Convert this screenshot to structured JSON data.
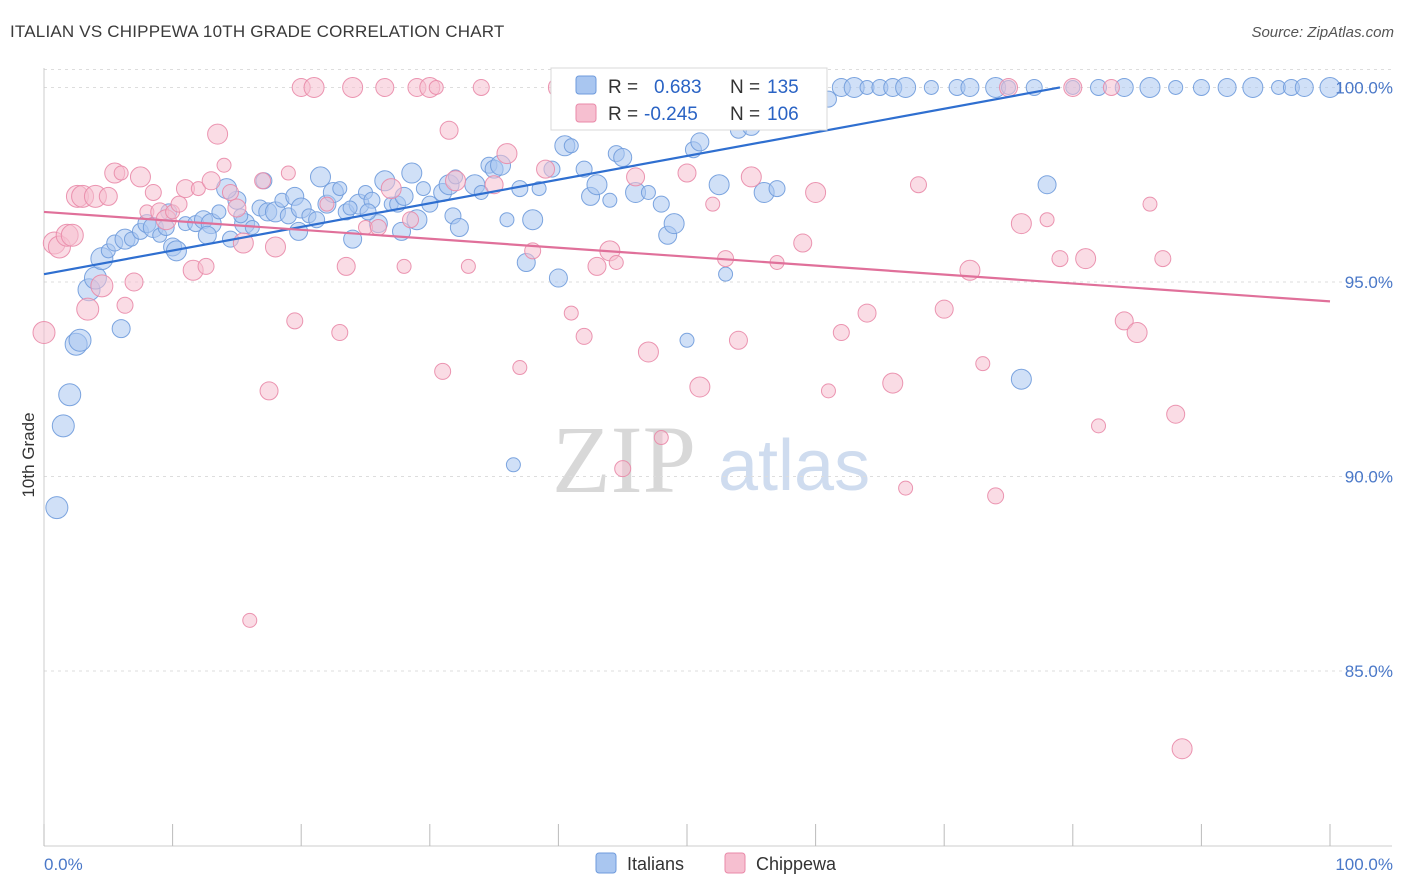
{
  "header": {
    "title": "ITALIAN VS CHIPPEWA 10TH GRADE CORRELATION CHART",
    "source": "Source: ZipAtlas.com"
  },
  "watermark": {
    "zip": "ZIP",
    "atlas": "atlas"
  },
  "colors": {
    "italians_fill": "#a9c6f0",
    "italians_stroke": "#6f9bdc",
    "italians_line": "#2f6fd0",
    "chippewa_fill": "#f6bfd0",
    "chippewa_stroke": "#e98aa9",
    "chippewa_line": "#e0709a",
    "grid": "#dddddd"
  },
  "legend": {
    "rows": [
      {
        "r_label": "R = ",
        "r_value": "0.683",
        "n_label": "N = ",
        "n_value": "135"
      },
      {
        "r_label": "R = ",
        "r_value": "-0.245",
        "n_label": "N = ",
        "n_value": "106"
      }
    ]
  },
  "chart_data": {
    "type": "scatter",
    "title": "ITALIAN VS CHIPPEWA 10TH GRADE CORRELATION CHART",
    "xlabel": "",
    "ylabel": "10th Grade",
    "xlim": [
      0,
      100
    ],
    "ylim": [
      80.5,
      100.5
    ],
    "x_tick_labels": [
      "0.0%",
      "100.0%"
    ],
    "y_ticks": [
      {
        "value": 100,
        "label": "100.0%"
      },
      {
        "value": 95,
        "label": "95.0%"
      },
      {
        "value": 90,
        "label": "90.0%"
      },
      {
        "value": 85,
        "label": "85.0%"
      }
    ],
    "grid": true,
    "legend_position": "top-center",
    "series": [
      {
        "name": "Italians",
        "trend": {
          "x": [
            0,
            79
          ],
          "y": [
            95.2,
            100.0
          ]
        },
        "points": [
          [
            1,
            89.2
          ],
          [
            1.5,
            91.3
          ],
          [
            2,
            92.1
          ],
          [
            2.5,
            93.4
          ],
          [
            2.8,
            93.5
          ],
          [
            3.5,
            94.8
          ],
          [
            4,
            95.1
          ],
          [
            4.5,
            95.6
          ],
          [
            5,
            95.8
          ],
          [
            5.5,
            96.0
          ],
          [
            6,
            93.8
          ],
          [
            6.3,
            96.1
          ],
          [
            6.8,
            96.1
          ],
          [
            7.5,
            96.3
          ],
          [
            8,
            96.5
          ],
          [
            8.5,
            96.4
          ],
          [
            9,
            96.2
          ],
          [
            9.5,
            96.4
          ],
          [
            10,
            95.9
          ],
          [
            10.3,
            95.8
          ],
          [
            11,
            96.5
          ],
          [
            11.8,
            96.5
          ],
          [
            12.4,
            96.6
          ],
          [
            13,
            96.5
          ],
          [
            13.6,
            96.8
          ],
          [
            14.5,
            96.1
          ],
          [
            15,
            97.1
          ],
          [
            15.6,
            96.5
          ],
          [
            16.2,
            96.4
          ],
          [
            16.8,
            96.9
          ],
          [
            17.4,
            96.8
          ],
          [
            18,
            96.8
          ],
          [
            18.5,
            97.1
          ],
          [
            19,
            96.7
          ],
          [
            19.5,
            97.2
          ],
          [
            20,
            96.9
          ],
          [
            20.6,
            96.7
          ],
          [
            21.2,
            96.6
          ],
          [
            22,
            97.0
          ],
          [
            22.5,
            97.3
          ],
          [
            23,
            97.4
          ],
          [
            23.5,
            96.8
          ],
          [
            24,
            96.1
          ],
          [
            24.5,
            97.0
          ],
          [
            25,
            97.3
          ],
          [
            25.5,
            97.1
          ],
          [
            26,
            96.5
          ],
          [
            26.5,
            97.6
          ],
          [
            27,
            97.0
          ],
          [
            27.5,
            97.0
          ],
          [
            28,
            97.2
          ],
          [
            29,
            96.6
          ],
          [
            29.5,
            97.4
          ],
          [
            30,
            97.0
          ],
          [
            31,
            97.3
          ],
          [
            31.5,
            97.5
          ],
          [
            32,
            97.7
          ],
          [
            31.8,
            96.7
          ],
          [
            32.3,
            96.4
          ],
          [
            33.5,
            97.5
          ],
          [
            34,
            97.3
          ],
          [
            34.6,
            98.0
          ],
          [
            35,
            97.9
          ],
          [
            35.5,
            98.0
          ],
          [
            36,
            96.6
          ],
          [
            37,
            97.4
          ],
          [
            37.5,
            95.5
          ],
          [
            38,
            96.6
          ],
          [
            38.5,
            97.4
          ],
          [
            39.5,
            97.9
          ],
          [
            40,
            95.1
          ],
          [
            40.5,
            98.5
          ],
          [
            41,
            98.5
          ],
          [
            42,
            97.9
          ],
          [
            42.5,
            97.2
          ],
          [
            43,
            97.5
          ],
          [
            44,
            97.1
          ],
          [
            44.5,
            98.3
          ],
          [
            45,
            98.2
          ],
          [
            46,
            97.3
          ],
          [
            47,
            97.3
          ],
          [
            48,
            97.0
          ],
          [
            48.5,
            96.2
          ],
          [
            49,
            96.5
          ],
          [
            50,
            93.5
          ],
          [
            50.5,
            98.4
          ],
          [
            51,
            98.6
          ],
          [
            52.5,
            97.5
          ],
          [
            53,
            95.2
          ],
          [
            54,
            98.9
          ],
          [
            55,
            99.0
          ],
          [
            56,
            97.3
          ],
          [
            56.5,
            99.1
          ],
          [
            57,
            97.4
          ],
          [
            58,
            99.3
          ],
          [
            59,
            99.6
          ],
          [
            60,
            99.5
          ],
          [
            61,
            99.7
          ],
          [
            62,
            100
          ],
          [
            63,
            100
          ],
          [
            64,
            100
          ],
          [
            65,
            100
          ],
          [
            66,
            100
          ],
          [
            67,
            100
          ],
          [
            69,
            100
          ],
          [
            71,
            100
          ],
          [
            72,
            100
          ],
          [
            74,
            100
          ],
          [
            75,
            100
          ],
          [
            77,
            100
          ],
          [
            78,
            97.5
          ],
          [
            76,
            92.5
          ],
          [
            80,
            100
          ],
          [
            82,
            100
          ],
          [
            84,
            100
          ],
          [
            86,
            100
          ],
          [
            88,
            100
          ],
          [
            90,
            100
          ],
          [
            92,
            100
          ],
          [
            94,
            100
          ],
          [
            96,
            100
          ],
          [
            97,
            100
          ],
          [
            98,
            100
          ],
          [
            100,
            100
          ],
          [
            36.5,
            90.3
          ],
          [
            9.7,
            96.8
          ],
          [
            12.7,
            96.2
          ],
          [
            14.2,
            97.4
          ],
          [
            15.3,
            96.7
          ],
          [
            17.1,
            97.6
          ],
          [
            19.8,
            96.3
          ],
          [
            21.5,
            97.7
          ],
          [
            23.8,
            96.9
          ],
          [
            25.2,
            96.8
          ],
          [
            27.8,
            96.3
          ],
          [
            28.6,
            97.8
          ]
        ]
      },
      {
        "name": "Chippewa",
        "trend": {
          "x": [
            0,
            100
          ],
          "y": [
            96.8,
            94.5
          ]
        },
        "points": [
          [
            0,
            93.7
          ],
          [
            0.8,
            96.0
          ],
          [
            1.2,
            95.9
          ],
          [
            1.8,
            96.2
          ],
          [
            2.2,
            96.2
          ],
          [
            2.6,
            97.2
          ],
          [
            3,
            97.2
          ],
          [
            3.4,
            94.3
          ],
          [
            4,
            97.2
          ],
          [
            4.5,
            94.9
          ],
          [
            5,
            97.2
          ],
          [
            5.5,
            97.8
          ],
          [
            6,
            97.8
          ],
          [
            6.3,
            94.4
          ],
          [
            7,
            95.0
          ],
          [
            7.5,
            97.7
          ],
          [
            8,
            96.8
          ],
          [
            8.5,
            97.3
          ],
          [
            9,
            96.8
          ],
          [
            9.5,
            96.6
          ],
          [
            10,
            96.8
          ],
          [
            10.5,
            97.0
          ],
          [
            11,
            97.4
          ],
          [
            11.6,
            95.3
          ],
          [
            12,
            97.4
          ],
          [
            12.6,
            95.4
          ],
          [
            13,
            97.6
          ],
          [
            13.5,
            98.8
          ],
          [
            14,
            98.0
          ],
          [
            14.5,
            97.3
          ],
          [
            15,
            96.9
          ],
          [
            15.5,
            96.0
          ],
          [
            16,
            86.3
          ],
          [
            17,
            97.6
          ],
          [
            17.5,
            92.2
          ],
          [
            18,
            95.9
          ],
          [
            19,
            97.8
          ],
          [
            19.5,
            94.0
          ],
          [
            20,
            100
          ],
          [
            21,
            100
          ],
          [
            22,
            97.0
          ],
          [
            23,
            93.7
          ],
          [
            23.5,
            95.4
          ],
          [
            24,
            100
          ],
          [
            25,
            96.4
          ],
          [
            26,
            96.4
          ],
          [
            26.5,
            100
          ],
          [
            27,
            97.4
          ],
          [
            28,
            95.4
          ],
          [
            28.5,
            96.6
          ],
          [
            29,
            100
          ],
          [
            30,
            100
          ],
          [
            30.5,
            100
          ],
          [
            31,
            92.7
          ],
          [
            31.5,
            98.9
          ],
          [
            32,
            97.6
          ],
          [
            33,
            95.4
          ],
          [
            34,
            100
          ],
          [
            35,
            97.5
          ],
          [
            36,
            98.3
          ],
          [
            37,
            92.8
          ],
          [
            38,
            95.8
          ],
          [
            39,
            97.9
          ],
          [
            40,
            100
          ],
          [
            41,
            94.2
          ],
          [
            42,
            93.6
          ],
          [
            43,
            95.4
          ],
          [
            44,
            95.8
          ],
          [
            44.5,
            95.5
          ],
          [
            45,
            90.2
          ],
          [
            46,
            97.7
          ],
          [
            47,
            93.2
          ],
          [
            48,
            91.0
          ],
          [
            49,
            100
          ],
          [
            50,
            97.8
          ],
          [
            51,
            92.3
          ],
          [
            52,
            97.0
          ],
          [
            53,
            95.6
          ],
          [
            54,
            93.5
          ],
          [
            55,
            97.7
          ],
          [
            57,
            95.5
          ],
          [
            58,
            100
          ],
          [
            59,
            96.0
          ],
          [
            60,
            97.3
          ],
          [
            61,
            92.2
          ],
          [
            62,
            93.7
          ],
          [
            64,
            94.2
          ],
          [
            66,
            92.4
          ],
          [
            67,
            89.7
          ],
          [
            68,
            97.5
          ],
          [
            70,
            94.3
          ],
          [
            72,
            95.3
          ],
          [
            73,
            92.9
          ],
          [
            74,
            89.5
          ],
          [
            75,
            100
          ],
          [
            76,
            96.5
          ],
          [
            78,
            96.6
          ],
          [
            79,
            95.6
          ],
          [
            80,
            100
          ],
          [
            81,
            95.6
          ],
          [
            82,
            91.3
          ],
          [
            83,
            100
          ],
          [
            84,
            94.0
          ],
          [
            85,
            93.7
          ],
          [
            86,
            97.0
          ],
          [
            87,
            95.6
          ],
          [
            88,
            91.6
          ],
          [
            88.5,
            83.0
          ]
        ]
      }
    ]
  },
  "bottom_legend": [
    {
      "label": "Italians"
    },
    {
      "label": "Chippewa"
    }
  ]
}
